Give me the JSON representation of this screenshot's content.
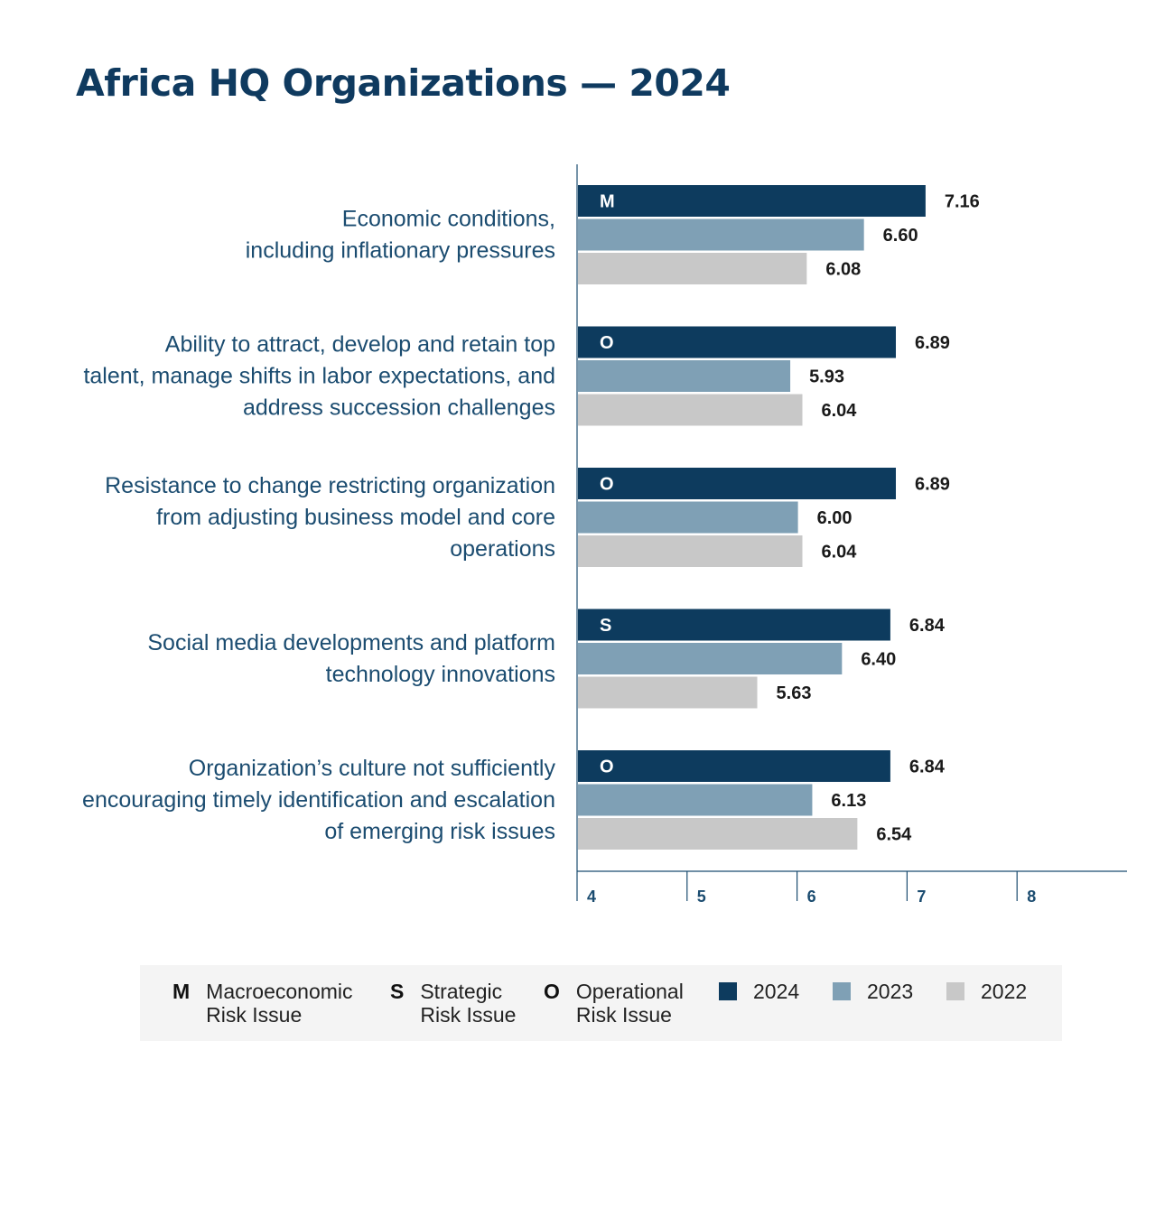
{
  "title": "Africa HQ Organizations — 2024",
  "colors": {
    "2024": "#0d3b5e",
    "2023": "#7fa0b5",
    "2022": "#c8c8c8",
    "text": "#1b4c70"
  },
  "chart_data": {
    "type": "bar",
    "orientation": "horizontal",
    "title": "Africa HQ Organizations — 2024",
    "categories": [
      "Economic conditions,\nincluding inflationary pressures",
      "Ability to attract, develop and retain top\ntalent, manage shifts in labor expectations, and\naddress succession challenges",
      "Resistance to change restricting organization\nfrom adjusting business model and core\noperations",
      "Social media developments and platform\ntechnology innovations",
      "Organization’s culture not sufficiently\nencouraging timely identification and escalation\nof emerging risk issues"
    ],
    "risk_codes": [
      "M",
      "O",
      "O",
      "S",
      "O"
    ],
    "series": [
      {
        "name": "2024",
        "values": [
          7.16,
          6.89,
          6.89,
          6.84,
          6.84
        ]
      },
      {
        "name": "2023",
        "values": [
          6.6,
          5.93,
          6.0,
          6.4,
          6.13
        ]
      },
      {
        "name": "2022",
        "values": [
          6.08,
          6.04,
          6.04,
          5.63,
          6.54
        ]
      }
    ],
    "value_labels": [
      [
        "7.16",
        "6.60",
        "6.08"
      ],
      [
        "6.89",
        "5.93",
        "6.04"
      ],
      [
        "6.89",
        "6.00",
        "6.04"
      ],
      [
        "6.84",
        "6.40",
        "5.63"
      ],
      [
        "6.84",
        "6.13",
        "6.54"
      ]
    ],
    "xlim": [
      4,
      9
    ],
    "xticks": [
      4,
      5,
      6,
      7,
      8
    ],
    "xlabel": "",
    "ylabel": "",
    "grid": false
  },
  "legend": {
    "codes": [
      {
        "code": "M",
        "text": "Macroeconomic\nRisk Issue"
      },
      {
        "code": "S",
        "text": "Strategic\nRisk Issue"
      },
      {
        "code": "O",
        "text": "Operational\nRisk Issue"
      }
    ],
    "years": [
      "2024",
      "2023",
      "2022"
    ]
  }
}
